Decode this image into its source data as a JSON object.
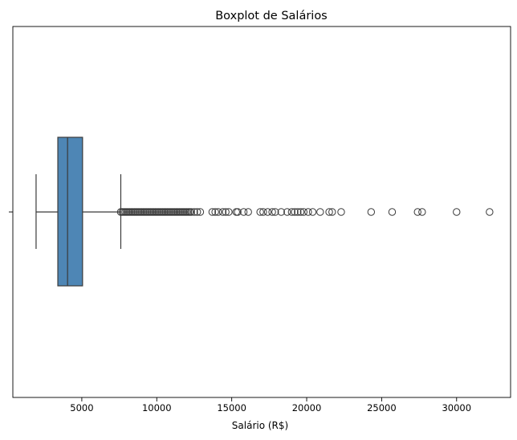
{
  "chart_data": {
    "type": "boxplot",
    "title": "Boxplot de Salários",
    "xlabel": "Salário (R$)",
    "ylabel": "",
    "xlim": [
      400,
      33600
    ],
    "xticks": [
      5000,
      10000,
      15000,
      20000,
      25000,
      30000
    ],
    "xtick_labels": [
      "5000",
      "10000",
      "15000",
      "20000",
      "25000",
      "30000"
    ],
    "orientation": "horizontal",
    "grid": false,
    "box": {
      "whisker_low": 1950,
      "q1": 3400,
      "median": 4050,
      "q3": 5050,
      "whisker_high": 7600
    },
    "outliers": [
      7600,
      7700,
      7800,
      7900,
      8000,
      8100,
      8200,
      8300,
      8400,
      8500,
      8600,
      8700,
      8800,
      8900,
      9000,
      9100,
      9200,
      9300,
      9400,
      9500,
      9600,
      9700,
      9800,
      9900,
      10000,
      10100,
      10200,
      10300,
      10400,
      10500,
      10600,
      10700,
      10800,
      10900,
      11000,
      11100,
      11200,
      11300,
      11400,
      11500,
      11600,
      11700,
      11800,
      11900,
      12000,
      12100,
      12200,
      12300,
      12500,
      12700,
      12900,
      13700,
      13900,
      14100,
      14400,
      14600,
      14800,
      15300,
      15400,
      15800,
      16100,
      16900,
      17100,
      17400,
      17700,
      17900,
      18300,
      18700,
      19000,
      19200,
      19400,
      19600,
      19800,
      20100,
      20400,
      20900,
      21500,
      21700,
      22300,
      24300,
      25700,
      27400,
      27700,
      30000,
      32200
    ],
    "colors": {
      "box_fill": "#4e86b5",
      "lines": "#3a3a3a",
      "outlier_edge": "#3a3a3a"
    }
  }
}
